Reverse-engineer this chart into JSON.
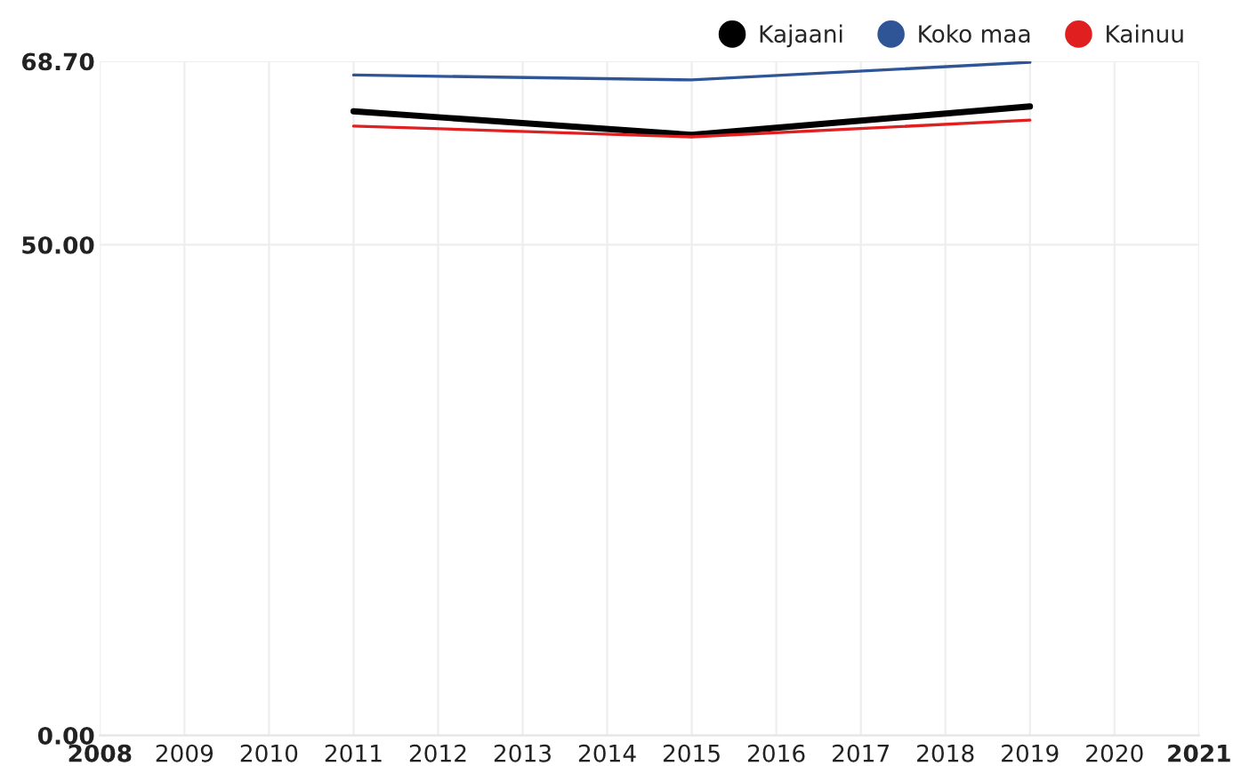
{
  "chart_data": {
    "type": "line",
    "x": [
      2011,
      2015,
      2019
    ],
    "series": [
      {
        "name": "Kajaani",
        "color": "#000000",
        "values": [
          63.6,
          61.2,
          64.1
        ]
      },
      {
        "name": "Koko maa",
        "color": "#2f5597",
        "values": [
          67.3,
          66.8,
          68.6
        ]
      },
      {
        "name": "Kainuu",
        "color": "#e02020",
        "values": [
          62.1,
          61.0,
          62.7
        ]
      }
    ],
    "xlim": [
      2008,
      2021
    ],
    "xticks": [
      2008,
      2009,
      2010,
      2011,
      2012,
      2013,
      2014,
      2015,
      2016,
      2017,
      2018,
      2019,
      2020,
      2021
    ],
    "ylim": [
      0,
      68.7
    ],
    "yticks": [
      {
        "value": 0,
        "label": "0.00"
      },
      {
        "value": 50,
        "label": "50.00"
      },
      {
        "value": 68.7,
        "label": "68.70"
      }
    ],
    "grid": true,
    "legend": "top right",
    "marker": "none",
    "line_style": "solid"
  }
}
